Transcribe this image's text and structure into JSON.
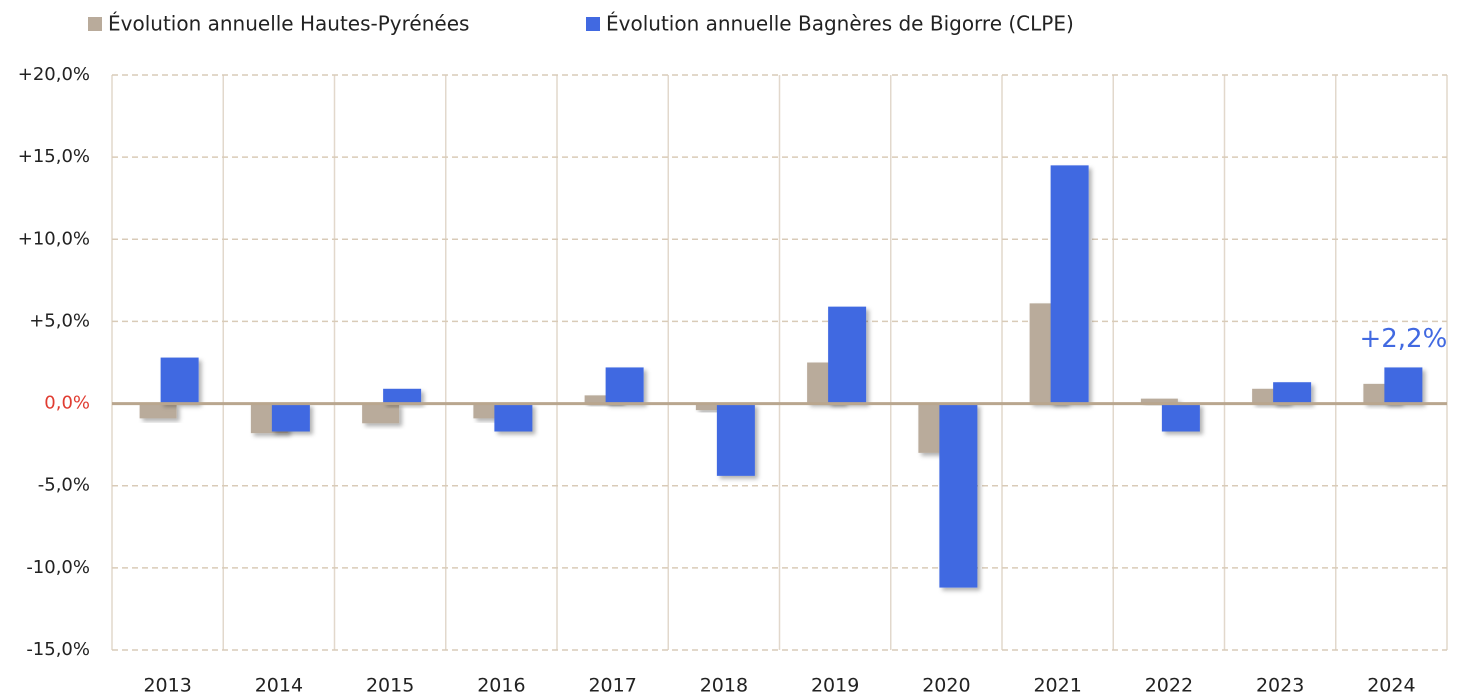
{
  "chart_data": {
    "type": "bar",
    "categories": [
      "2013",
      "2014",
      "2015",
      "2016",
      "2017",
      "2018",
      "2019",
      "2020",
      "2021",
      "2022",
      "2023",
      "2024"
    ],
    "series": [
      {
        "name": "Évolution annuelle Hautes-Pyrénées",
        "color": "#b9ab9b",
        "values": [
          -0.9,
          -1.8,
          -1.2,
          -0.9,
          0.5,
          -0.4,
          2.5,
          -3.0,
          6.1,
          0.3,
          0.9,
          1.2
        ]
      },
      {
        "name": "Évolution annuelle Bagnères de Bigorre (CLPE)",
        "color": "#4169e1",
        "values": [
          2.8,
          -1.7,
          0.9,
          -1.7,
          2.2,
          -4.4,
          5.9,
          -11.2,
          14.5,
          -1.7,
          1.3,
          2.2
        ],
        "value_labels": [
          null,
          null,
          null,
          null,
          null,
          null,
          null,
          null,
          null,
          null,
          null,
          "+2,2%"
        ]
      }
    ],
    "ylim": [
      -15,
      20
    ],
    "yticks": [
      {
        "value": -15,
        "label": "-15,0%"
      },
      {
        "value": -10,
        "label": "-10,0%"
      },
      {
        "value": -5,
        "label": "-5,0%"
      },
      {
        "value": 0,
        "label": "0,0%"
      },
      {
        "value": 5,
        "label": "+5,0%"
      },
      {
        "value": 10,
        "label": "+10,0%"
      },
      {
        "value": 15,
        "label": "+15,0%"
      },
      {
        "value": 20,
        "label": "+20,0%"
      }
    ],
    "grid": true
  }
}
